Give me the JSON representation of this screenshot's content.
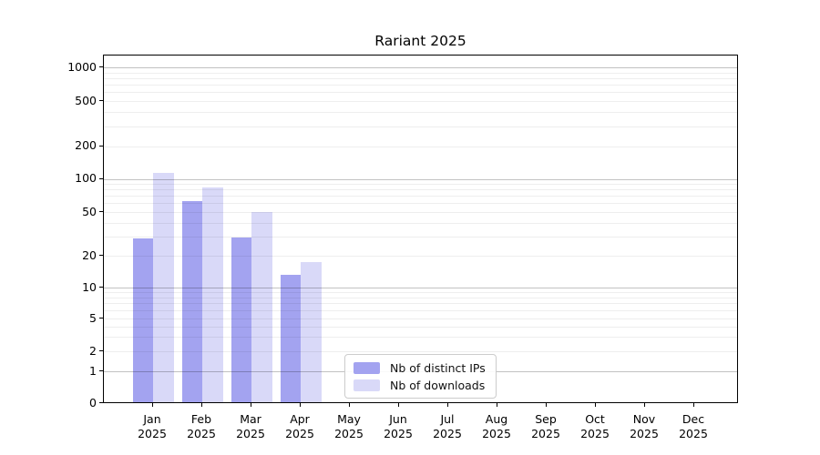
{
  "chart_data": {
    "type": "bar",
    "title": "Rariant 2025",
    "categories": [
      {
        "month": "Jan",
        "year": "2025"
      },
      {
        "month": "Feb",
        "year": "2025"
      },
      {
        "month": "Mar",
        "year": "2025"
      },
      {
        "month": "Apr",
        "year": "2025"
      },
      {
        "month": "May",
        "year": "2025"
      },
      {
        "month": "Jun",
        "year": "2025"
      },
      {
        "month": "Jul",
        "year": "2025"
      },
      {
        "month": "Aug",
        "year": "2025"
      },
      {
        "month": "Sep",
        "year": "2025"
      },
      {
        "month": "Oct",
        "year": "2025"
      },
      {
        "month": "Nov",
        "year": "2025"
      },
      {
        "month": "Dec",
        "year": "2025"
      }
    ],
    "series": [
      {
        "name": "Nb of distinct IPs",
        "color": "#a3a3f0",
        "values": [
          28,
          62,
          29,
          13,
          0,
          0,
          0,
          0,
          0,
          0,
          0,
          0
        ]
      },
      {
        "name": "Nb of downloads",
        "color": "#d9d9f8",
        "values": [
          112,
          82,
          49,
          17,
          0,
          0,
          0,
          0,
          0,
          0,
          0,
          0
        ]
      }
    ],
    "y_axis": {
      "scale": "log with zero baseline",
      "tick_values": [
        0,
        1,
        2,
        5,
        10,
        20,
        50,
        100,
        200,
        500,
        1000
      ],
      "major_grid_values": [
        1,
        10,
        100,
        1000
      ],
      "minor_grid_subs": [
        2,
        3,
        4,
        5,
        6,
        7,
        8,
        9
      ]
    },
    "x_axis": {
      "label_format": "month over year",
      "vertical_grid": false
    },
    "legend": {
      "position": "lower center-left",
      "border_visible": true
    }
  },
  "colors": {
    "bar_distinct_ips": "#a3a3f0",
    "bar_downloads": "#d9d9f8",
    "grid_major": "rgba(0,0,0,0.24)",
    "grid_minor": "rgba(0,0,0,0.065)",
    "axis": "#000000",
    "background": "#ffffff"
  }
}
